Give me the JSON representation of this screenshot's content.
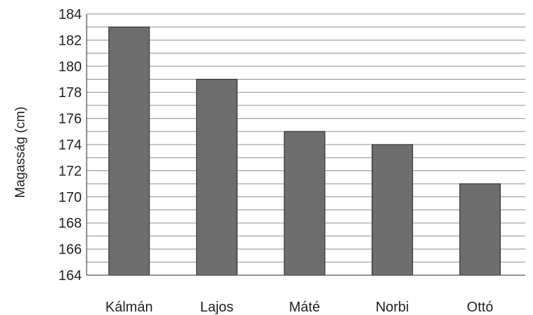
{
  "chart_data": {
    "type": "bar",
    "title": "",
    "xlabel": "",
    "ylabel": "Magasság (cm)",
    "categories": [
      "Kálmán",
      "Lajos",
      "Máté",
      "Norbi",
      "Ottó"
    ],
    "values": [
      183,
      179,
      175,
      174,
      171
    ],
    "ylim": [
      164,
      184
    ],
    "yticks": [
      "164",
      "166",
      "168",
      "170",
      "172",
      "174",
      "176",
      "178",
      "180",
      "182",
      "184"
    ],
    "minor_gridlines_every": 1,
    "grid": true,
    "legend": "none",
    "colors": {
      "bar_fill": "#6e6e6e",
      "bar_stroke": "#333333",
      "grid": "#8c8c8c",
      "axis": "#555555"
    }
  }
}
